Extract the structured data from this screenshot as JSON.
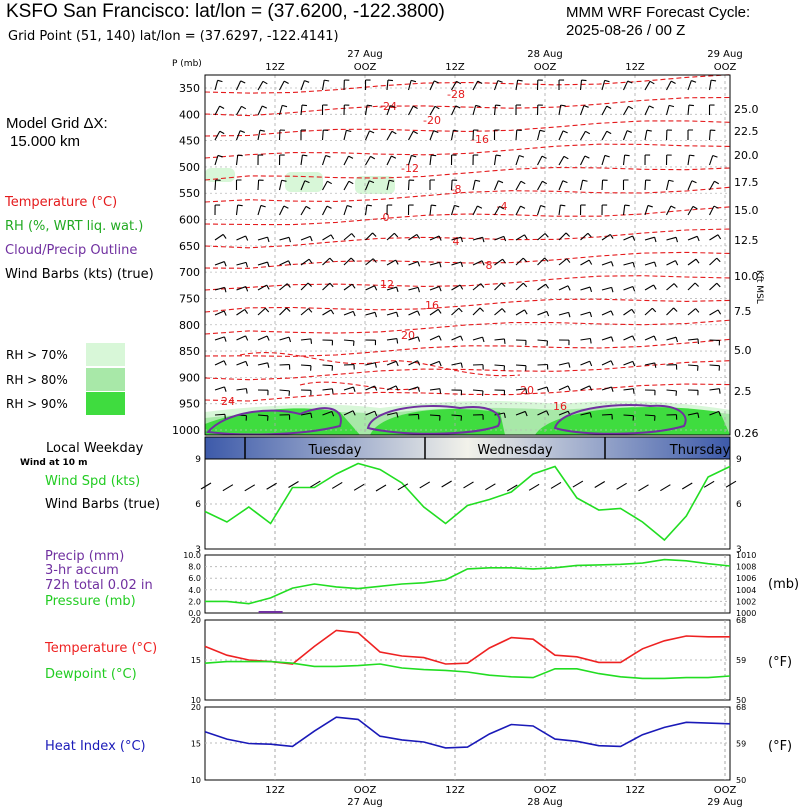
{
  "header": {
    "title": "KSFO San Francisco:  lat/lon = (37.6200, -122.3800)",
    "grid_point": "Grid Point (51, 140) lat/lon = (37.6297, -122.4141)",
    "model_line1": "MMM WRF Forecast Cycle:",
    "model_line2": "2025-08-26 / 00  Z"
  },
  "left_labels": {
    "grid_dx_line1": "Model Grid ΔX:",
    "grid_dx_line2": "15.000 km",
    "temperature": "Temperature (°C)",
    "rh": "RH (%, WRT liq. wat.)",
    "cloud": "Cloud/Precip Outline",
    "wind_barbs": "Wind Barbs (kts) (true)",
    "rh_legend": [
      {
        "label": "RH > 70%",
        "color": "#d8f7d8"
      },
      {
        "label": "RH > 80%",
        "color": "#a8e8a8"
      },
      {
        "label": "RH > 90%",
        "color": "#3fdc3f"
      }
    ]
  },
  "colors": {
    "temperature": "#e41a1c",
    "rh_text": "#22aa22",
    "cloud": "#7030a0",
    "wind": "#22dd22",
    "pressure": "#22dd22",
    "temp_line": "#ee2222",
    "dew_line": "#22dd22",
    "heat_line": "#1a1ab8",
    "precip_text": "#7030a0",
    "heat_text": "#1a1ab8"
  },
  "time_axis": {
    "top_labels": [
      "12Z",
      "27 Aug",
      "OOZ",
      "12Z",
      "28 Aug",
      "OOZ",
      "12Z",
      "29 Aug",
      "OOZ"
    ],
    "bottom_labels": [
      "12Z",
      "OOZ",
      "27 Aug",
      "12Z",
      "OOZ",
      "28 Aug",
      "12Z",
      "OOZ",
      "29 Aug"
    ]
  },
  "cross_section": {
    "y_title": "P (mb)",
    "pressure_levels": [
      350,
      400,
      450,
      500,
      550,
      600,
      650,
      700,
      750,
      800,
      850,
      900,
      950,
      1000
    ],
    "kft_ticks": [
      "25.0",
      "22.5",
      "20.0",
      "17.5",
      "15.0",
      "12.5",
      "10.0",
      "7.5",
      "5.0",
      "2.5",
      "0.26"
    ],
    "kft_label": "Kft MSL",
    "temperature_labels": [
      "-28",
      "-24",
      "-20",
      "-16",
      "-12",
      "-8",
      "-4",
      "0",
      "4",
      "8",
      "12",
      "16",
      "20",
      "20",
      "16",
      "24"
    ],
    "rh_legend_note": ""
  },
  "day_bar": {
    "left_title": "Local Weekday",
    "sub_note": "Wind at 10 m",
    "days": [
      "Tuesday",
      "Wednesday",
      "Thursday"
    ]
  },
  "wind_panel": {
    "label1": "Wind Spd (kts)",
    "label2": "Wind Barbs (true)",
    "y_ticks": [
      "9",
      "6",
      "3"
    ],
    "right_ticks": [
      "9",
      "6",
      "3"
    ]
  },
  "precip_panel": {
    "label1": "Precip (mm)",
    "label2": "3-hr accum",
    "label3": "72h total 0.02 in",
    "label4": "Pressure (mb)",
    "unit": "(mb)",
    "left_ticks": [
      "10.0",
      "8.0",
      "6.0",
      "4.0",
      "2.0",
      "0.0"
    ],
    "right_ticks": [
      "1010",
      "1008",
      "1006",
      "1004",
      "1002",
      "1000"
    ]
  },
  "temp_panel": {
    "label1": "Temperature (°C)",
    "label2": "Dewpoint (°C)",
    "unit": "(°F)",
    "left_ticks": [
      "20",
      "15",
      "10"
    ],
    "right_ticks": [
      "68",
      "59",
      "50"
    ]
  },
  "heat_panel": {
    "label1": "Heat Index (°C)",
    "unit": "(°F)",
    "left_ticks": [
      "20",
      "15",
      "10"
    ],
    "right_ticks": [
      "68",
      "59",
      "50"
    ]
  },
  "chart_data": [
    {
      "type": "line",
      "title": "Wind Spd (kts)",
      "ylim": [
        3,
        9
      ],
      "x": [
        0,
        1,
        2,
        3,
        4,
        5,
        6,
        7,
        8,
        9,
        10,
        11,
        12,
        13,
        14,
        15,
        16,
        17,
        18,
        19,
        20,
        21,
        22,
        23,
        24
      ],
      "series": [
        {
          "name": "Wind Spd (kts)",
          "values": [
            5.5,
            4.8,
            5.8,
            4.7,
            7.1,
            7.1,
            8.0,
            8.7,
            8.3,
            7.4,
            5.8,
            4.7,
            5.9,
            6.3,
            6.8,
            8.0,
            8.5,
            6.4,
            5.6,
            5.7,
            4.8,
            3.6,
            5.2,
            7.8,
            8.5
          ]
        }
      ]
    },
    {
      "type": "line",
      "title": "Pressure (mb)",
      "ylim": [
        1000,
        1010
      ],
      "x": [
        0,
        1,
        2,
        3,
        4,
        5,
        6,
        7,
        8,
        9,
        10,
        11,
        12,
        13,
        14,
        15,
        16,
        17,
        18,
        19,
        20,
        21,
        22,
        23,
        24
      ],
      "series": [
        {
          "name": "Pressure (mb)",
          "values": [
            1002.0,
            1002.0,
            1001.6,
            1002.6,
            1004.3,
            1005.0,
            1004.5,
            1004.2,
            1004.6,
            1005.0,
            1005.2,
            1005.7,
            1007.6,
            1007.8,
            1007.8,
            1007.6,
            1007.8,
            1008.2,
            1008.3,
            1008.4,
            1008.6,
            1009.2,
            1009.0,
            1008.5,
            1008.1
          ]
        }
      ],
      "precip_mm": [
        0,
        0,
        0,
        0.2,
        0,
        0,
        0,
        0,
        0,
        0,
        0,
        0,
        0,
        0,
        0,
        0,
        0,
        0,
        0,
        0,
        0,
        0,
        0,
        0,
        0
      ]
    },
    {
      "type": "line",
      "title": "Temperature / Dewpoint (°C)",
      "ylim": [
        10,
        20
      ],
      "x": [
        0,
        1,
        2,
        3,
        4,
        5,
        6,
        7,
        8,
        9,
        10,
        11,
        12,
        13,
        14,
        15,
        16,
        17,
        18,
        19,
        20,
        21,
        22,
        23,
        24
      ],
      "series": [
        {
          "name": "Temperature (°C)",
          "values": [
            16.7,
            15.6,
            15.0,
            14.8,
            14.5,
            16.7,
            18.7,
            18.4,
            16.0,
            15.5,
            15.3,
            14.5,
            14.6,
            16.5,
            17.8,
            17.6,
            15.6,
            15.4,
            14.7,
            14.7,
            16.4,
            17.4,
            18.0,
            17.9,
            17.9
          ]
        },
        {
          "name": "Dewpoint (°C)",
          "values": [
            14.6,
            14.8,
            14.8,
            14.8,
            14.6,
            14.2,
            14.2,
            14.3,
            14.5,
            14.0,
            13.8,
            13.7,
            13.5,
            13.1,
            12.9,
            12.8,
            13.9,
            13.9,
            13.3,
            12.9,
            12.7,
            12.7,
            12.8,
            12.8,
            13.0
          ]
        }
      ]
    },
    {
      "type": "line",
      "title": "Heat Index (°C)",
      "ylim": [
        10,
        20
      ],
      "x": [
        0,
        1,
        2,
        3,
        4,
        5,
        6,
        7,
        8,
        9,
        10,
        11,
        12,
        13,
        14,
        15,
        16,
        17,
        18,
        19,
        20,
        21,
        22,
        23,
        24
      ],
      "series": [
        {
          "name": "Heat Index (°C)",
          "values": [
            16.6,
            15.6,
            15.0,
            14.9,
            14.6,
            16.7,
            18.6,
            18.3,
            16.0,
            15.5,
            15.2,
            14.4,
            14.5,
            16.3,
            17.6,
            17.4,
            15.6,
            15.3,
            14.7,
            14.6,
            16.2,
            17.2,
            17.9,
            17.8,
            17.7
          ]
        }
      ]
    }
  ]
}
